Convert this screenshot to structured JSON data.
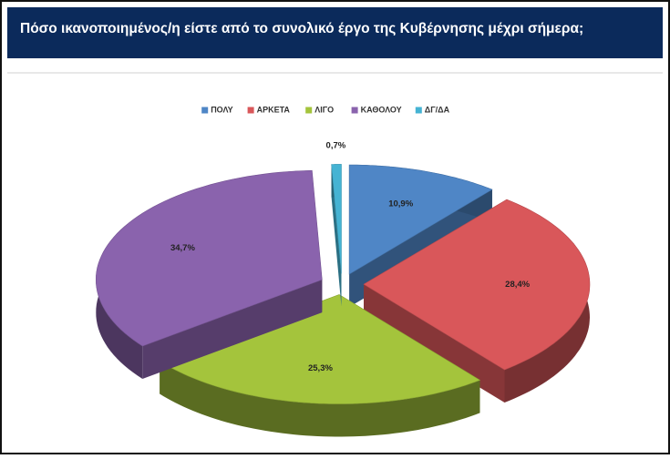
{
  "chart_data": {
    "type": "pie",
    "title": "Πόσο ικανοποιημένος/η είστε από το συνολικό έργο της Κυβέρνησης μέχρι σήμερα;",
    "categories": [
      "ΠΟΛΥ",
      "ΑΡΚΕΤΑ",
      "ΛΙΓΟ",
      "ΚΑΘΟΛΟΥ",
      "ΔΓ/ΔΑ"
    ],
    "values": [
      10.9,
      28.4,
      25.3,
      34.7,
      0.7
    ],
    "value_labels": [
      "10,9%",
      "28,4%",
      "25,3%",
      "34,7%",
      "0,7%"
    ],
    "colors": [
      "#4f86c6",
      "#d9575a",
      "#a4c43c",
      "#8a63ad",
      "#45b3d3"
    ],
    "legend": "top"
  }
}
